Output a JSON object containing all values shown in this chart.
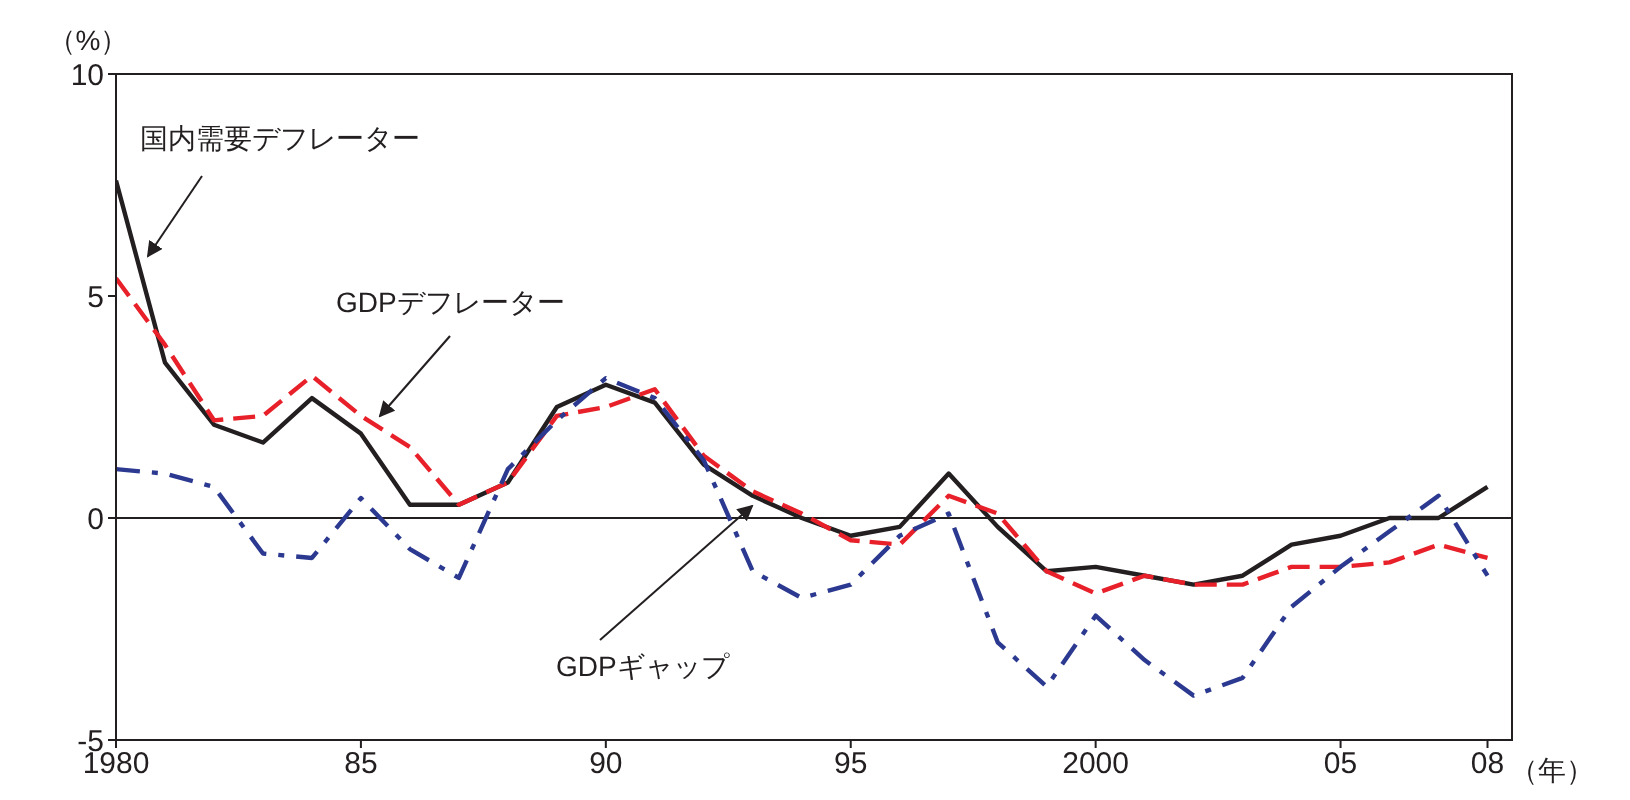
{
  "chart_data": {
    "type": "line",
    "ylabel": "（%）",
    "xlabel": "（年）",
    "x": [
      1980,
      1981,
      1982,
      1983,
      1984,
      1985,
      1986,
      1987,
      1988,
      1989,
      1990,
      1991,
      1992,
      1993,
      1994,
      1995,
      1996,
      1997,
      1998,
      1999,
      2000,
      2001,
      2002,
      2003,
      2004,
      2005,
      2006,
      2007,
      2008
    ],
    "series": [
      {
        "name": "国内需要デフレーター",
        "color": "#231f20",
        "line_style": "solid",
        "values": [
          7.6,
          3.5,
          2.1,
          1.7,
          2.7,
          1.9,
          0.3,
          0.3,
          0.8,
          2.5,
          3.0,
          2.6,
          1.2,
          0.5,
          0.0,
          -0.4,
          -0.2,
          1.0,
          -0.2,
          -1.2,
          -1.1,
          -1.3,
          -1.5,
          -1.3,
          -0.6,
          -0.4,
          0.0,
          0.0,
          0.7
        ]
      },
      {
        "name": "GDPデフレーター",
        "color": "#e8202a",
        "line_style": "dashed",
        "values": [
          5.4,
          3.9,
          2.2,
          2.3,
          3.2,
          2.3,
          1.6,
          0.3,
          0.8,
          2.3,
          2.5,
          2.9,
          1.4,
          0.6,
          0.1,
          -0.5,
          -0.6,
          0.5,
          0.1,
          -1.2,
          -1.7,
          -1.3,
          -1.5,
          -1.5,
          -1.1,
          -1.1,
          -1.0,
          -0.6,
          -0.9
        ]
      },
      {
        "name": "GDPギャップ",
        "color": "#2b3990",
        "line_style": "dashdot",
        "values": [
          1.1,
          1.0,
          0.7,
          -0.8,
          -0.9,
          0.45,
          -0.7,
          -1.35,
          1.1,
          2.2,
          3.15,
          2.7,
          1.3,
          -1.2,
          -1.8,
          -1.5,
          -0.4,
          0.1,
          -2.8,
          -3.8,
          -2.2,
          -3.2,
          -4.0,
          -3.6,
          -2.0,
          -1.1,
          -0.3,
          0.5,
          -1.3
        ]
      }
    ],
    "xlim": [
      1980,
      2008.5
    ],
    "xticks": [
      {
        "value": 1980,
        "label": "1980"
      },
      {
        "value": 1985,
        "label": "85"
      },
      {
        "value": 1990,
        "label": "90"
      },
      {
        "value": 1995,
        "label": "95"
      },
      {
        "value": 2000,
        "label": "2000"
      },
      {
        "value": 2005,
        "label": "05"
      },
      {
        "value": 2008,
        "label": "08"
      }
    ],
    "ylim": [
      -5,
      10
    ],
    "yticks": [
      -5,
      0,
      5,
      10
    ],
    "ref_lines": [
      {
        "axis": "y",
        "value": 0,
        "color": "#231f20"
      }
    ],
    "grid": false,
    "marker": "none"
  }
}
